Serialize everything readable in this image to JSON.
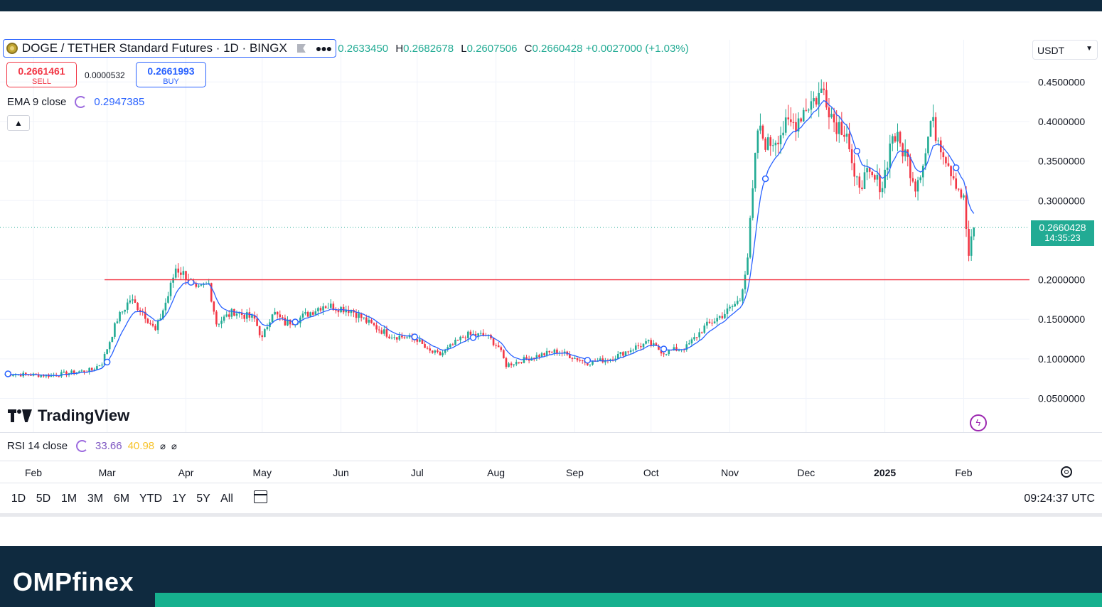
{
  "chart_data": {
    "type": "candlestick",
    "symbol_title": "DOGE / TETHER Standard Futures · 1D · BINGX",
    "ohlc": {
      "O": "0.2633450",
      "H": "0.2682678",
      "L": "0.2607506",
      "C": "0.2660428",
      "change": "+0.0027000 (+1.03%)"
    },
    "last_price": 0.2660428,
    "countdown": "14:35:23",
    "ylim": [
      0.02,
      0.49
    ],
    "y_ticks": [
      "0.4500000",
      "0.4000000",
      "0.3500000",
      "0.3000000",
      "0.2000000",
      "0.1500000",
      "0.1000000",
      "0.0500000"
    ],
    "horizontal_line": {
      "value": 0.2,
      "from": "2024-02-29",
      "color": "#f23645"
    },
    "x_labels": [
      {
        "text": "Feb",
        "date": "2024-02-01",
        "bold": false
      },
      {
        "text": "Mar",
        "date": "2024-03-01",
        "bold": false
      },
      {
        "text": "Apr",
        "date": "2024-04-01",
        "bold": false
      },
      {
        "text": "May",
        "date": "2024-05-01",
        "bold": false
      },
      {
        "text": "Jun",
        "date": "2024-06-01",
        "bold": false
      },
      {
        "text": "Jul",
        "date": "2024-07-01",
        "bold": false
      },
      {
        "text": "Aug",
        "date": "2024-08-01",
        "bold": false
      },
      {
        "text": "Sep",
        "date": "2024-09-01",
        "bold": false
      },
      {
        "text": "Oct",
        "date": "2024-10-01",
        "bold": false
      },
      {
        "text": "Nov",
        "date": "2024-11-01",
        "bold": false
      },
      {
        "text": "Dec",
        "date": "2024-12-01",
        "bold": false
      },
      {
        "text": "2025",
        "date": "2025-01-01",
        "bold": true
      },
      {
        "text": "Feb",
        "date": "2025-02-01",
        "bold": false
      }
    ],
    "close_series": {
      "start_date": "2024-01-21",
      "end_date": "2025-02-05",
      "keypoints": [
        [
          "2024-01-21",
          0.081
        ],
        [
          "2024-02-08",
          0.079
        ],
        [
          "2024-02-24",
          0.086
        ],
        [
          "2024-02-28",
          0.095
        ],
        [
          "2024-03-05",
          0.15
        ],
        [
          "2024-03-10",
          0.175
        ],
        [
          "2024-03-15",
          0.16
        ],
        [
          "2024-03-20",
          0.135
        ],
        [
          "2024-03-25",
          0.18
        ],
        [
          "2024-03-28",
          0.215
        ],
        [
          "2024-04-01",
          0.205
        ],
        [
          "2024-04-05",
          0.185
        ],
        [
          "2024-04-10",
          0.195
        ],
        [
          "2024-04-13",
          0.145
        ],
        [
          "2024-04-20",
          0.16
        ],
        [
          "2024-04-28",
          0.15
        ],
        [
          "2024-05-01",
          0.125
        ],
        [
          "2024-05-05",
          0.16
        ],
        [
          "2024-05-10",
          0.145
        ],
        [
          "2024-05-15",
          0.15
        ],
        [
          "2024-05-25",
          0.168
        ],
        [
          "2024-06-05",
          0.162
        ],
        [
          "2024-06-12",
          0.145
        ],
        [
          "2024-06-20",
          0.13
        ],
        [
          "2024-07-01",
          0.125
        ],
        [
          "2024-07-05",
          0.11
        ],
        [
          "2024-07-10",
          0.105
        ],
        [
          "2024-07-20",
          0.13
        ],
        [
          "2024-07-28",
          0.13
        ],
        [
          "2024-08-02",
          0.115
        ],
        [
          "2024-08-05",
          0.092
        ],
        [
          "2024-08-15",
          0.102
        ],
        [
          "2024-08-25",
          0.11
        ],
        [
          "2024-09-06",
          0.095
        ],
        [
          "2024-09-15",
          0.1
        ],
        [
          "2024-09-25",
          0.115
        ],
        [
          "2024-09-30",
          0.12
        ],
        [
          "2024-10-06",
          0.108
        ],
        [
          "2024-10-15",
          0.115
        ],
        [
          "2024-10-22",
          0.14
        ],
        [
          "2024-10-31",
          0.16
        ],
        [
          "2024-11-05",
          0.175
        ],
        [
          "2024-11-08",
          0.23
        ],
        [
          "2024-11-12",
          0.39
        ],
        [
          "2024-11-16",
          0.37
        ],
        [
          "2024-11-22",
          0.39
        ],
        [
          "2024-11-27",
          0.4
        ],
        [
          "2024-12-01",
          0.42
        ],
        [
          "2024-12-05",
          0.43
        ],
        [
          "2024-12-08",
          0.44
        ],
        [
          "2024-12-12",
          0.4
        ],
        [
          "2024-12-17",
          0.39
        ],
        [
          "2024-12-20",
          0.32
        ],
        [
          "2024-12-25",
          0.33
        ],
        [
          "2024-12-31",
          0.32
        ],
        [
          "2025-01-04",
          0.385
        ],
        [
          "2025-01-09",
          0.36
        ],
        [
          "2025-01-13",
          0.32
        ],
        [
          "2025-01-17",
          0.36
        ],
        [
          "2025-01-19",
          0.4
        ],
        [
          "2025-01-22",
          0.38
        ],
        [
          "2025-01-27",
          0.34
        ],
        [
          "2025-02-01",
          0.3
        ],
        [
          "2025-02-03",
          0.23
        ],
        [
          "2025-02-05",
          0.266
        ]
      ]
    },
    "ema_markers": [
      "2024-01-22",
      "2024-03-01",
      "2024-04-03",
      "2024-05-14",
      "2024-06-30",
      "2024-07-23",
      "2024-09-06",
      "2024-10-06",
      "2024-11-15",
      "2024-12-21",
      "2025-01-29"
    ],
    "colors": {
      "up": "#22ab94",
      "down": "#f23645",
      "ema": "#2962ff",
      "hline": "#f23645",
      "grid": "#f0f3fa"
    }
  },
  "sell": {
    "price": "0.2661461",
    "label": "SELL"
  },
  "buy": {
    "price": "0.2661993",
    "label": "BUY"
  },
  "spread": "0.0000532",
  "ema": {
    "label": "EMA 9 close",
    "value": "0.2947385"
  },
  "currency": "USDT",
  "rsi": {
    "label": "RSI 14 close",
    "value1": "33.66",
    "value2": "40.98"
  },
  "watermark": "TradingView",
  "ranges": [
    "1D",
    "5D",
    "1M",
    "3M",
    "6M",
    "YTD",
    "1Y",
    "5Y",
    "All"
  ],
  "clock": "09:24:37 UTC",
  "footer": {
    "brand": "OMPfinex"
  }
}
